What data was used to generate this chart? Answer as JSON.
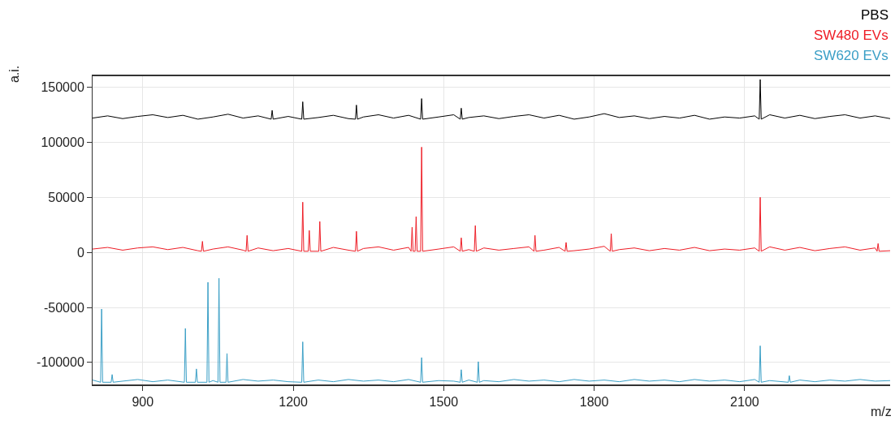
{
  "chart_data": {
    "type": "line",
    "xlabel": "m/z",
    "ylabel": "a.i.",
    "xlim": [
      800,
      2390
    ],
    "xticks": [
      900,
      1200,
      1500,
      1800,
      2100
    ],
    "ylim": [
      -120000,
      160000
    ],
    "yticks": [
      -100000,
      -50000,
      0,
      50000,
      100000,
      150000
    ],
    "grid": true,
    "legend": "top right",
    "marker": "none",
    "line_style": "solid",
    "series": [
      {
        "name": "PBS",
        "color": "#000000",
        "x": [
          800,
          830,
          860,
          890,
          920,
          950,
          980,
          1010,
          1040,
          1070,
          1100,
          1130,
          1156,
          1158,
          1160,
          1190,
          1217,
          1219,
          1221,
          1250,
          1280,
          1310,
          1324,
          1326,
          1328,
          1340,
          1370,
          1400,
          1430,
          1454,
          1456,
          1458,
          1490,
          1520,
          1533,
          1535,
          1537,
          1550,
          1580,
          1610,
          1640,
          1670,
          1700,
          1730,
          1760,
          1790,
          1820,
          1850,
          1880,
          1910,
          1940,
          1970,
          2000,
          2030,
          2060,
          2090,
          2120,
          2129,
          2131,
          2133,
          2150,
          2180,
          2210,
          2240,
          2270,
          2300,
          2330,
          2360,
          2390
        ],
        "values": [
          122000,
          124000,
          121500,
          123500,
          125000,
          122500,
          124500,
          121000,
          123000,
          125500,
          122000,
          124000,
          121000,
          129000,
          121000,
          123500,
          121000,
          136800,
          121000,
          122500,
          124500,
          121500,
          121000,
          133800,
          121000,
          123000,
          125000,
          122000,
          124500,
          121000,
          139700,
          121000,
          123000,
          125000,
          121000,
          131000,
          121000,
          122500,
          124000,
          121500,
          123500,
          125000,
          122000,
          124500,
          121000,
          123000,
          126000,
          122500,
          124000,
          121500,
          123500,
          122000,
          124500,
          121000,
          123000,
          122000,
          124000,
          121000,
          157000,
          121000,
          125000,
          122000,
          124500,
          121500,
          123500,
          125000,
          122000,
          124000,
          121500
        ]
      },
      {
        "name": "SW480 EVs",
        "color": "#ee1c25",
        "x": [
          800,
          830,
          860,
          890,
          920,
          950,
          980,
          1010,
          1017,
          1019,
          1021,
          1040,
          1070,
          1100,
          1106,
          1108,
          1110,
          1130,
          1160,
          1190,
          1217,
          1219,
          1221,
          1230,
          1232,
          1234,
          1251,
          1253,
          1255,
          1280,
          1310,
          1324,
          1326,
          1328,
          1340,
          1370,
          1400,
          1430,
          1435,
          1437,
          1439,
          1443,
          1445,
          1447,
          1454,
          1456,
          1458,
          1490,
          1520,
          1533,
          1535,
          1537,
          1550,
          1561,
          1563,
          1565,
          1580,
          1610,
          1640,
          1670,
          1680,
          1682,
          1684,
          1700,
          1730,
          1742,
          1744,
          1746,
          1760,
          1790,
          1820,
          1832,
          1834,
          1836,
          1850,
          1880,
          1910,
          1940,
          1970,
          2000,
          2030,
          2060,
          2090,
          2120,
          2129,
          2131,
          2133,
          2150,
          2180,
          2210,
          2240,
          2270,
          2300,
          2330,
          2360,
          2364,
          2366,
          2368,
          2390
        ],
        "values": [
          3000,
          4500,
          2000,
          4000,
          5000,
          2500,
          4500,
          1500,
          1000,
          10000,
          1000,
          3000,
          5000,
          2000,
          1000,
          15400,
          1000,
          4000,
          1500,
          3500,
          1000,
          45600,
          1000,
          1000,
          19900,
          1000,
          1000,
          28000,
          1000,
          4500,
          2000,
          1000,
          19100,
          1000,
          3500,
          5000,
          2000,
          4500,
          1000,
          22800,
          1000,
          1000,
          32400,
          1000,
          1000,
          95600,
          1000,
          3000,
          5000,
          1000,
          13200,
          1000,
          2500,
          1000,
          24300,
          1000,
          4000,
          2000,
          3500,
          5000,
          1000,
          15400,
          1000,
          2000,
          4500,
          1000,
          9000,
          1000,
          1500,
          3000,
          5500,
          1000,
          16900,
          1000,
          2500,
          4000,
          1500,
          3500,
          2000,
          4500,
          1500,
          3000,
          2000,
          4000,
          1000,
          50000,
          1000,
          5000,
          2000,
          4500,
          1500,
          3500,
          5000,
          2000,
          4000,
          1000,
          8000,
          1000,
          1500
        ]
      },
      {
        "name": "SW620 EVs",
        "color": "#3a9fc6",
        "x": [
          800,
          816,
          818,
          820,
          837,
          839,
          841,
          860,
          890,
          920,
          950,
          983,
          985,
          987,
          1005,
          1007,
          1009,
          1028,
          1030,
          1032,
          1040,
          1050,
          1052,
          1054,
          1066,
          1068,
          1070,
          1100,
          1130,
          1160,
          1190,
          1217,
          1219,
          1221,
          1250,
          1280,
          1310,
          1340,
          1370,
          1400,
          1430,
          1454,
          1456,
          1458,
          1490,
          1520,
          1533,
          1535,
          1537,
          1550,
          1567,
          1569,
          1571,
          1580,
          1610,
          1640,
          1670,
          1700,
          1730,
          1760,
          1790,
          1820,
          1850,
          1880,
          1910,
          1940,
          1970,
          2000,
          2030,
          2060,
          2090,
          2120,
          2129,
          2131,
          2133,
          2150,
          2187,
          2189,
          2191,
          2210,
          2240,
          2270,
          2300,
          2330,
          2360,
          2390
        ],
        "values": [
          -116000,
          -118000,
          -51500,
          -118000,
          -118000,
          -111000,
          -118000,
          -117000,
          -115500,
          -117500,
          -116000,
          -118000,
          -69100,
          -118000,
          -118000,
          -105900,
          -118000,
          -118000,
          -27200,
          -118000,
          -116500,
          -118000,
          -23500,
          -118000,
          -118000,
          -91900,
          -118000,
          -115500,
          -117000,
          -116000,
          -117500,
          -118000,
          -81300,
          -118000,
          -116000,
          -117500,
          -115500,
          -117000,
          -116000,
          -117500,
          -115500,
          -118000,
          -95600,
          -118000,
          -116500,
          -117000,
          -118000,
          -106600,
          -118000,
          -116000,
          -118000,
          -99300,
          -118000,
          -116500,
          -117500,
          -115500,
          -117000,
          -116000,
          -117500,
          -115500,
          -117000,
          -116000,
          -117500,
          -115500,
          -117000,
          -116000,
          -117500,
          -115500,
          -117000,
          -116000,
          -117500,
          -115500,
          -118000,
          -84900,
          -118000,
          -116500,
          -118000,
          -112000,
          -118000,
          -116000,
          -117500,
          -116000,
          -117000,
          -115500,
          -117000,
          -116500
        ]
      }
    ]
  }
}
